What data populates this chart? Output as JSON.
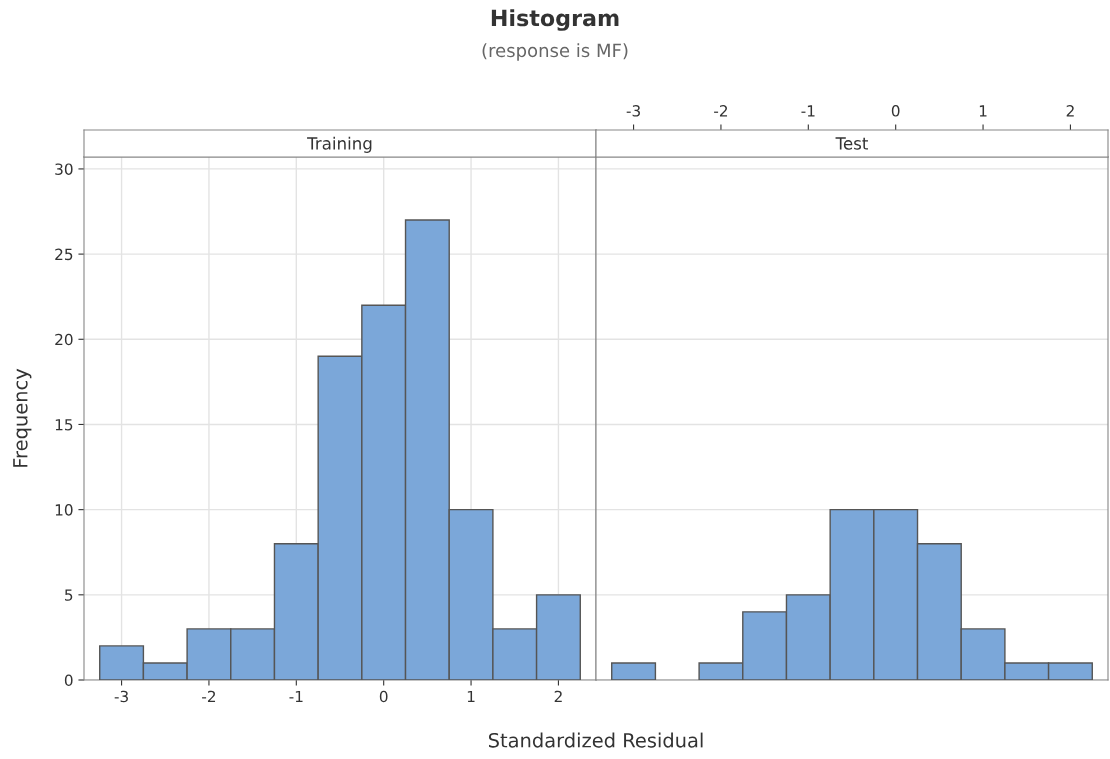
{
  "chart_data": [
    {
      "type": "histogram",
      "title": "Training",
      "annotations": [
        "Histogram",
        "(response is MF)"
      ],
      "xlabel": "Standardized Residual",
      "ylabel": "Frequency",
      "bins": [
        -3.25,
        -2.75,
        -2.25,
        -1.75,
        -1.25,
        -0.75,
        -0.25,
        0.25,
        0.75,
        1.25,
        1.75,
        2.25
      ],
      "values": [
        2,
        1,
        3,
        3,
        8,
        19,
        22,
        27,
        10,
        3,
        5
      ],
      "color": "#7ba7d9",
      "xlim": [
        -3.43,
        2.43
      ],
      "xticks": [
        -3,
        -2,
        -1,
        0,
        1,
        2
      ],
      "ylim": [
        0,
        30.7
      ],
      "yticks": [
        0,
        5,
        10,
        15,
        20,
        25,
        30
      ],
      "grid": true
    },
    {
      "type": "histogram",
      "title": "Test",
      "bins": [
        -3.25,
        -2.75,
        -2.25,
        -1.75,
        -1.25,
        -0.75,
        -0.25,
        0.25,
        0.75,
        1.25,
        1.75,
        2.25
      ],
      "values": [
        1,
        0,
        1,
        4,
        5,
        10,
        10,
        8,
        3,
        1,
        1
      ],
      "color": "#7ba7d9",
      "xlim": [
        -3.43,
        2.43
      ],
      "x2lim": [
        -3.43,
        2.43
      ],
      "x2ticks": [
        -3,
        -2,
        -1,
        0,
        1,
        2
      ],
      "ylim": [
        0,
        30.7
      ],
      "yticks": [
        0,
        5,
        10,
        15,
        20,
        25,
        30
      ],
      "grid": true,
      "tick_labels": false
    }
  ]
}
